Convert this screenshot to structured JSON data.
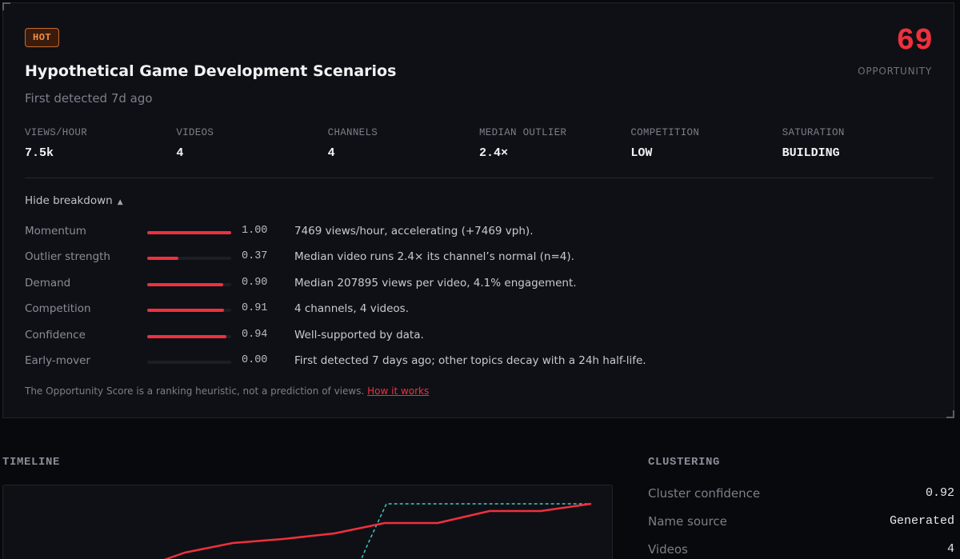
{
  "topic": {
    "badge": "HOT",
    "title": "Hypothetical Game Development Scenarios",
    "first_detected": "First detected 7d ago",
    "score": "69",
    "score_label": "OPPORTUNITY"
  },
  "stats": [
    {
      "label": "VIEWS/HOUR",
      "value": "7.5k"
    },
    {
      "label": "VIDEOS",
      "value": "4"
    },
    {
      "label": "CHANNELS",
      "value": "4"
    },
    {
      "label": "MEDIAN OUTLIER",
      "value": "2.4×"
    },
    {
      "label": "COMPETITION",
      "value": "LOW"
    },
    {
      "label": "SATURATION",
      "value": "BUILDING"
    }
  ],
  "breakdown": {
    "toggle_label": "Hide breakdown",
    "toggle_caret": "▲",
    "rows": [
      {
        "label": "Momentum",
        "value": 1.0,
        "display": "1.00",
        "text": "7469 views/hour, accelerating (+7469 vph)."
      },
      {
        "label": "Outlier strength",
        "value": 0.37,
        "display": "0.37",
        "text": "Median video runs 2.4× its channel’s normal (n=4)."
      },
      {
        "label": "Demand",
        "value": 0.9,
        "display": "0.90",
        "text": "Median 207895 views per video, 4.1% engagement."
      },
      {
        "label": "Competition",
        "value": 0.91,
        "display": "0.91",
        "text": "4 channels, 4 videos."
      },
      {
        "label": "Confidence",
        "value": 0.94,
        "display": "0.94",
        "text": "Well-supported by data."
      },
      {
        "label": "Early-mover",
        "value": 0.0,
        "display": "0.00",
        "text": "First detected 7 days ago; other topics decay with a 24h half-life."
      }
    ],
    "footnote": "The Opportunity Score is a ranking heuristic, not a prediction of views.",
    "footnote_link": "How it works"
  },
  "timeline": {
    "title": "TIMELINE",
    "colors": {
      "primary": "#f0303e",
      "secondary": "#3ec8c8"
    }
  },
  "clustering": {
    "title": "CLUSTERING",
    "rows": [
      {
        "label": "Cluster confidence",
        "value": "0.92"
      },
      {
        "label": "Name source",
        "value": "Generated"
      },
      {
        "label": "Videos",
        "value": "4"
      }
    ]
  }
}
